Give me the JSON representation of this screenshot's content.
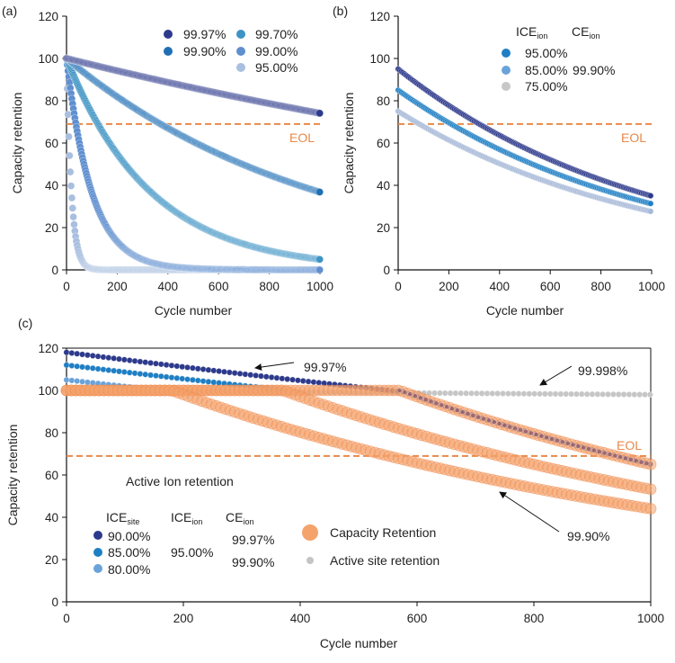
{
  "colors": {
    "eol": "#e8894a",
    "capacity": "#f4a36b",
    "site": "#bdbdbd",
    "s9997": "#2d3a8c",
    "s9990": "#1f6fb5",
    "s9970": "#3d93c4",
    "s9900": "#5f8fcf",
    "s9500": "#a9bfe0",
    "ice90": "#2d3a8c",
    "ice85": "#1f7fc4",
    "ice80": "#6aa3da"
  },
  "chart_data": [
    {
      "panel_label": "(a)",
      "type": "scatter",
      "xlabel": "Cycle number",
      "ylabel": "Capacity retention",
      "xlim": [
        0,
        1000
      ],
      "ylim": [
        0,
        120
      ],
      "xticks": [
        "0",
        "200",
        "400",
        "600",
        "800",
        "1000"
      ],
      "yticks": [
        "0",
        "20",
        "40",
        "60",
        "80",
        "100",
        "120"
      ],
      "eol": {
        "label": "EOL",
        "value": 69
      },
      "series": [
        {
          "name": "99.97%",
          "start": 100,
          "ce": 0.9997,
          "end_value": 74
        },
        {
          "name": "99.90%",
          "start": 100,
          "ce": 0.999,
          "end_value": 37
        },
        {
          "name": "99.70%",
          "start": 100,
          "ce": 0.997,
          "end_value": 5
        },
        {
          "name": "99.00%",
          "start": 100,
          "ce": 0.99,
          "end_value": 0
        },
        {
          "name": "95.00%",
          "start": 100,
          "ce": 0.95,
          "end_value": 0
        }
      ]
    },
    {
      "panel_label": "(b)",
      "type": "scatter",
      "xlabel": "Cycle number",
      "ylabel": "Capacity retention",
      "xlim": [
        0,
        1000
      ],
      "ylim": [
        0,
        120
      ],
      "xticks": [
        "0",
        "200",
        "400",
        "600",
        "800",
        "1000"
      ],
      "yticks": [
        "0",
        "20",
        "40",
        "60",
        "80",
        "100",
        "120"
      ],
      "eol": {
        "label": "EOL",
        "value": 69
      },
      "legend_headers": {
        "ice": "ICE",
        "ice_sub": "ion",
        "ce": "CE",
        "ce_sub": "ion"
      },
      "ce_value": "99.90%",
      "series": [
        {
          "name": "95.00%",
          "start": 95,
          "ce": 0.999,
          "end_value": 35
        },
        {
          "name": "85.00%",
          "start": 85,
          "ce": 0.999,
          "end_value": 31
        },
        {
          "name": "75.00%",
          "start": 75,
          "ce": 0.999,
          "end_value": 28
        }
      ]
    },
    {
      "panel_label": "(c)",
      "type": "scatter",
      "xlabel": "Cycle number",
      "ylabel": "Capacity retention",
      "xlim": [
        0,
        1000
      ],
      "ylim": [
        0,
        120
      ],
      "xticks": [
        "0",
        "200",
        "400",
        "600",
        "800",
        "1000"
      ],
      "yticks": [
        "0",
        "20",
        "40",
        "60",
        "80",
        "100",
        "120"
      ],
      "eol": {
        "label": "EOL",
        "value": 69
      },
      "legend_title": "Active Ion retention",
      "legend_headers": {
        "ice_site": "ICE",
        "ice_site_sub": "site",
        "ice_ion": "ICE",
        "ice_ion_sub": "ion",
        "ce_ion": "CE",
        "ce_ion_sub": "ion"
      },
      "ice_site": [
        "90.00%",
        "85.00%",
        "80.00%"
      ],
      "ice_ion": "95.00%",
      "ce_ion": [
        "99.97%",
        "99.90%"
      ],
      "legend_capacity": "Capacity Retention",
      "legend_site": "Active site retention",
      "annotations": [
        "99.97%",
        "99.998%",
        "99.90%"
      ],
      "site_series": {
        "start": 100,
        "ce": 0.99998,
        "end_value": 98
      },
      "series": [
        {
          "name": "90.00%",
          "ion_start": 118,
          "ce_before": 0.9997,
          "break_cycle": 570,
          "ce_after": 0.999,
          "end_value": 64
        },
        {
          "name": "85.00%",
          "ion_start": 112,
          "ce_before": 0.9997,
          "break_cycle": 370,
          "ce_after": 0.999,
          "end_value": 52
        },
        {
          "name": "80.00%",
          "ion_start": 105,
          "ce_before": 0.9997,
          "break_cycle": 180,
          "ce_after": 0.999,
          "end_value": 44
        }
      ]
    }
  ]
}
